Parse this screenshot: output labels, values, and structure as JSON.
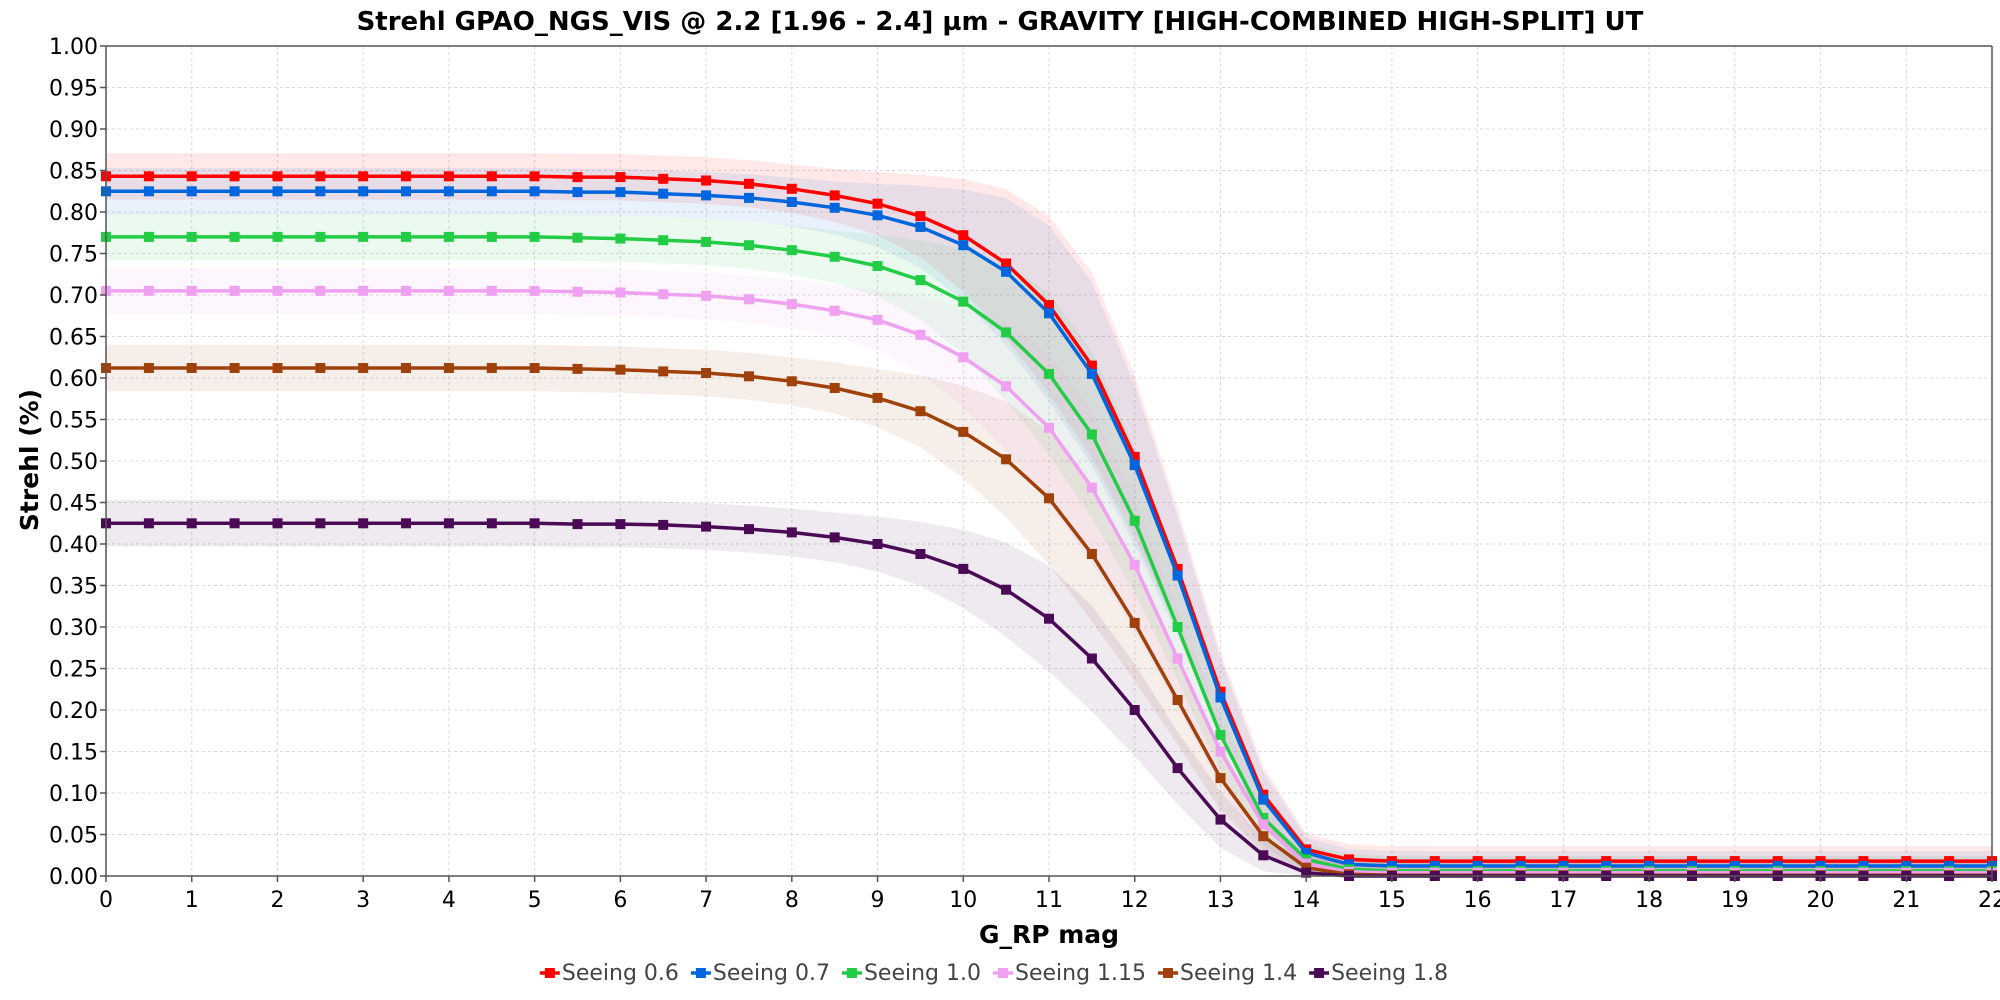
{
  "chart_data": {
    "type": "line",
    "title": "Strehl GPAO_NGS_VIS @ 2.2 [1.96 - 2.4] µm - GRAVITY [HIGH-COMBINED HIGH-SPLIT] UT",
    "xlabel": "G_RP mag",
    "ylabel": "Strehl (%)",
    "xlim": [
      0,
      22
    ],
    "ylim": [
      0,
      1
    ],
    "x_ticks": [
      "0",
      "1",
      "2",
      "3",
      "4",
      "5",
      "6",
      "7",
      "8",
      "9",
      "10",
      "11",
      "12",
      "13",
      "14",
      "15",
      "16",
      "17",
      "18",
      "19",
      "20",
      "21",
      "22"
    ],
    "y_ticks": [
      "0.00",
      "0.05",
      "0.10",
      "0.15",
      "0.20",
      "0.25",
      "0.30",
      "0.35",
      "0.40",
      "0.45",
      "0.50",
      "0.55",
      "0.60",
      "0.65",
      "0.70",
      "0.75",
      "0.80",
      "0.85",
      "0.90",
      "0.95",
      "1.00"
    ],
    "grid": true,
    "legend_position": "bottom-center",
    "marker": "square",
    "shaded_band": true,
    "x": [
      0,
      0.5,
      1,
      1.5,
      2,
      2.5,
      3,
      3.5,
      4,
      4.5,
      5,
      5.5,
      6,
      6.5,
      7,
      7.5,
      8,
      8.5,
      9,
      9.5,
      10,
      10.5,
      11,
      11.5,
      12,
      12.5,
      13,
      13.5,
      14,
      14.5,
      15,
      15.5,
      16,
      16.5,
      17,
      17.5,
      18,
      18.5,
      19,
      19.5,
      20,
      20.5,
      21,
      21.5,
      22
    ],
    "series": [
      {
        "name": "Seeing 0.6",
        "color": "#ff0000",
        "values": [
          0.843,
          0.843,
          0.843,
          0.843,
          0.843,
          0.843,
          0.843,
          0.843,
          0.843,
          0.843,
          0.843,
          0.842,
          0.842,
          0.84,
          0.838,
          0.834,
          0.828,
          0.82,
          0.81,
          0.795,
          0.772,
          0.738,
          0.688,
          0.615,
          0.505,
          0.37,
          0.222,
          0.098,
          0.032,
          0.02,
          0.018,
          0.018,
          0.018,
          0.018,
          0.018,
          0.018,
          0.018,
          0.018,
          0.018,
          0.018,
          0.018,
          0.018,
          0.018,
          0.018,
          0.018
        ]
      },
      {
        "name": "Seeing 0.7",
        "color": "#0066dd",
        "values": [
          0.825,
          0.825,
          0.825,
          0.825,
          0.825,
          0.825,
          0.825,
          0.825,
          0.825,
          0.825,
          0.825,
          0.824,
          0.824,
          0.822,
          0.82,
          0.817,
          0.812,
          0.805,
          0.796,
          0.782,
          0.76,
          0.728,
          0.678,
          0.605,
          0.495,
          0.362,
          0.215,
          0.092,
          0.028,
          0.014,
          0.012,
          0.012,
          0.012,
          0.012,
          0.012,
          0.012,
          0.012,
          0.012,
          0.012,
          0.012,
          0.012,
          0.012,
          0.012,
          0.012,
          0.012
        ]
      },
      {
        "name": "Seeing 1.0",
        "color": "#22cc44",
        "values": [
          0.77,
          0.77,
          0.77,
          0.77,
          0.77,
          0.77,
          0.77,
          0.77,
          0.77,
          0.77,
          0.77,
          0.769,
          0.768,
          0.766,
          0.764,
          0.76,
          0.754,
          0.746,
          0.735,
          0.718,
          0.692,
          0.655,
          0.605,
          0.532,
          0.428,
          0.3,
          0.17,
          0.07,
          0.02,
          0.008,
          0.006,
          0.006,
          0.006,
          0.006,
          0.006,
          0.006,
          0.006,
          0.006,
          0.006,
          0.006,
          0.006,
          0.006,
          0.006,
          0.006,
          0.006
        ]
      },
      {
        "name": "Seeing 1.15",
        "color": "#f0a0f0",
        "values": [
          0.705,
          0.705,
          0.705,
          0.705,
          0.705,
          0.705,
          0.705,
          0.705,
          0.705,
          0.705,
          0.705,
          0.704,
          0.703,
          0.701,
          0.699,
          0.695,
          0.689,
          0.681,
          0.67,
          0.652,
          0.625,
          0.59,
          0.54,
          0.468,
          0.375,
          0.262,
          0.15,
          0.062,
          0.015,
          0.005,
          0.004,
          0.004,
          0.004,
          0.004,
          0.004,
          0.004,
          0.004,
          0.004,
          0.004,
          0.004,
          0.004,
          0.004,
          0.004,
          0.004,
          0.004
        ]
      },
      {
        "name": "Seeing 1.4",
        "color": "#a0400a",
        "values": [
          0.612,
          0.612,
          0.612,
          0.612,
          0.612,
          0.612,
          0.612,
          0.612,
          0.612,
          0.612,
          0.612,
          0.611,
          0.61,
          0.608,
          0.606,
          0.602,
          0.596,
          0.588,
          0.576,
          0.56,
          0.535,
          0.502,
          0.455,
          0.388,
          0.305,
          0.212,
          0.118,
          0.048,
          0.01,
          0.002,
          0.001,
          0.001,
          0.001,
          0.001,
          0.001,
          0.001,
          0.001,
          0.001,
          0.001,
          0.001,
          0.001,
          0.001,
          0.001,
          0.001,
          0.001
        ]
      },
      {
        "name": "Seeing 1.8",
        "color": "#4a0a55",
        "values": [
          0.425,
          0.425,
          0.425,
          0.425,
          0.425,
          0.425,
          0.425,
          0.425,
          0.425,
          0.425,
          0.425,
          0.424,
          0.424,
          0.423,
          0.421,
          0.418,
          0.414,
          0.408,
          0.4,
          0.388,
          0.37,
          0.345,
          0.31,
          0.262,
          0.2,
          0.13,
          0.068,
          0.025,
          0.004,
          0.0,
          0.0,
          0.0,
          0.0,
          0.0,
          0.0,
          0.0,
          0.0,
          0.0,
          0.0,
          0.0,
          0.0,
          0.0,
          0.0,
          0.0,
          0.0
        ]
      }
    ]
  }
}
